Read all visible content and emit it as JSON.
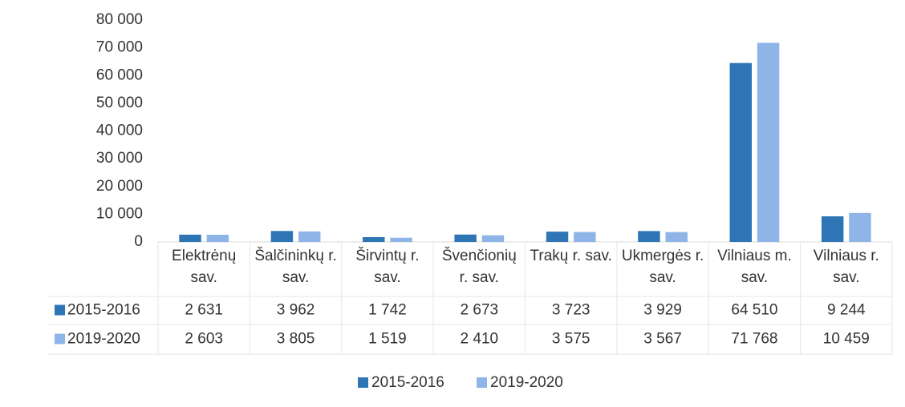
{
  "chart_data": {
    "type": "bar",
    "categories": [
      "Elektrėnų sav.",
      "Šalčininkų r. sav.",
      "Širvintų r. sav.",
      "Švenčionių r. sav.",
      "Trakų r. sav.",
      "Ukmergės r. sav.",
      "Vilniaus m. sav.",
      "Vilniaus r. sav."
    ],
    "series": [
      {
        "name": "2015-2016",
        "color": "#2e75b6",
        "values": [
          2631,
          3962,
          1742,
          2673,
          3723,
          3929,
          64510,
          9244
        ],
        "value_labels": [
          "2 631",
          "3 962",
          "1 742",
          "2 673",
          "3 723",
          "3 929",
          "64 510",
          "9 244"
        ]
      },
      {
        "name": "2019-2020",
        "color": "#8fb4e8",
        "values": [
          2603,
          3805,
          1519,
          2410,
          3575,
          3567,
          71768,
          10459
        ],
        "value_labels": [
          "2 603",
          "3 805",
          "1 519",
          "2 410",
          "3 575",
          "3 567",
          "71 768",
          "10 459"
        ]
      }
    ],
    "ylim": [
      0,
      80000
    ],
    "yticks": [
      0,
      {
        "value": 10000,
        "label": "10 000"
      },
      {
        "value": 20000,
        "label": "20 000"
      },
      {
        "value": 30000,
        "label": "30 000"
      },
      {
        "value": 40000,
        "label": "40 000"
      },
      {
        "value": 50000,
        "label": "50 000"
      },
      {
        "value": 60000,
        "label": "60 000"
      },
      {
        "value": 70000,
        "label": "70 000"
      },
      {
        "value": 80000,
        "label": "80 000"
      }
    ],
    "grid": false,
    "legend": "bottom"
  }
}
